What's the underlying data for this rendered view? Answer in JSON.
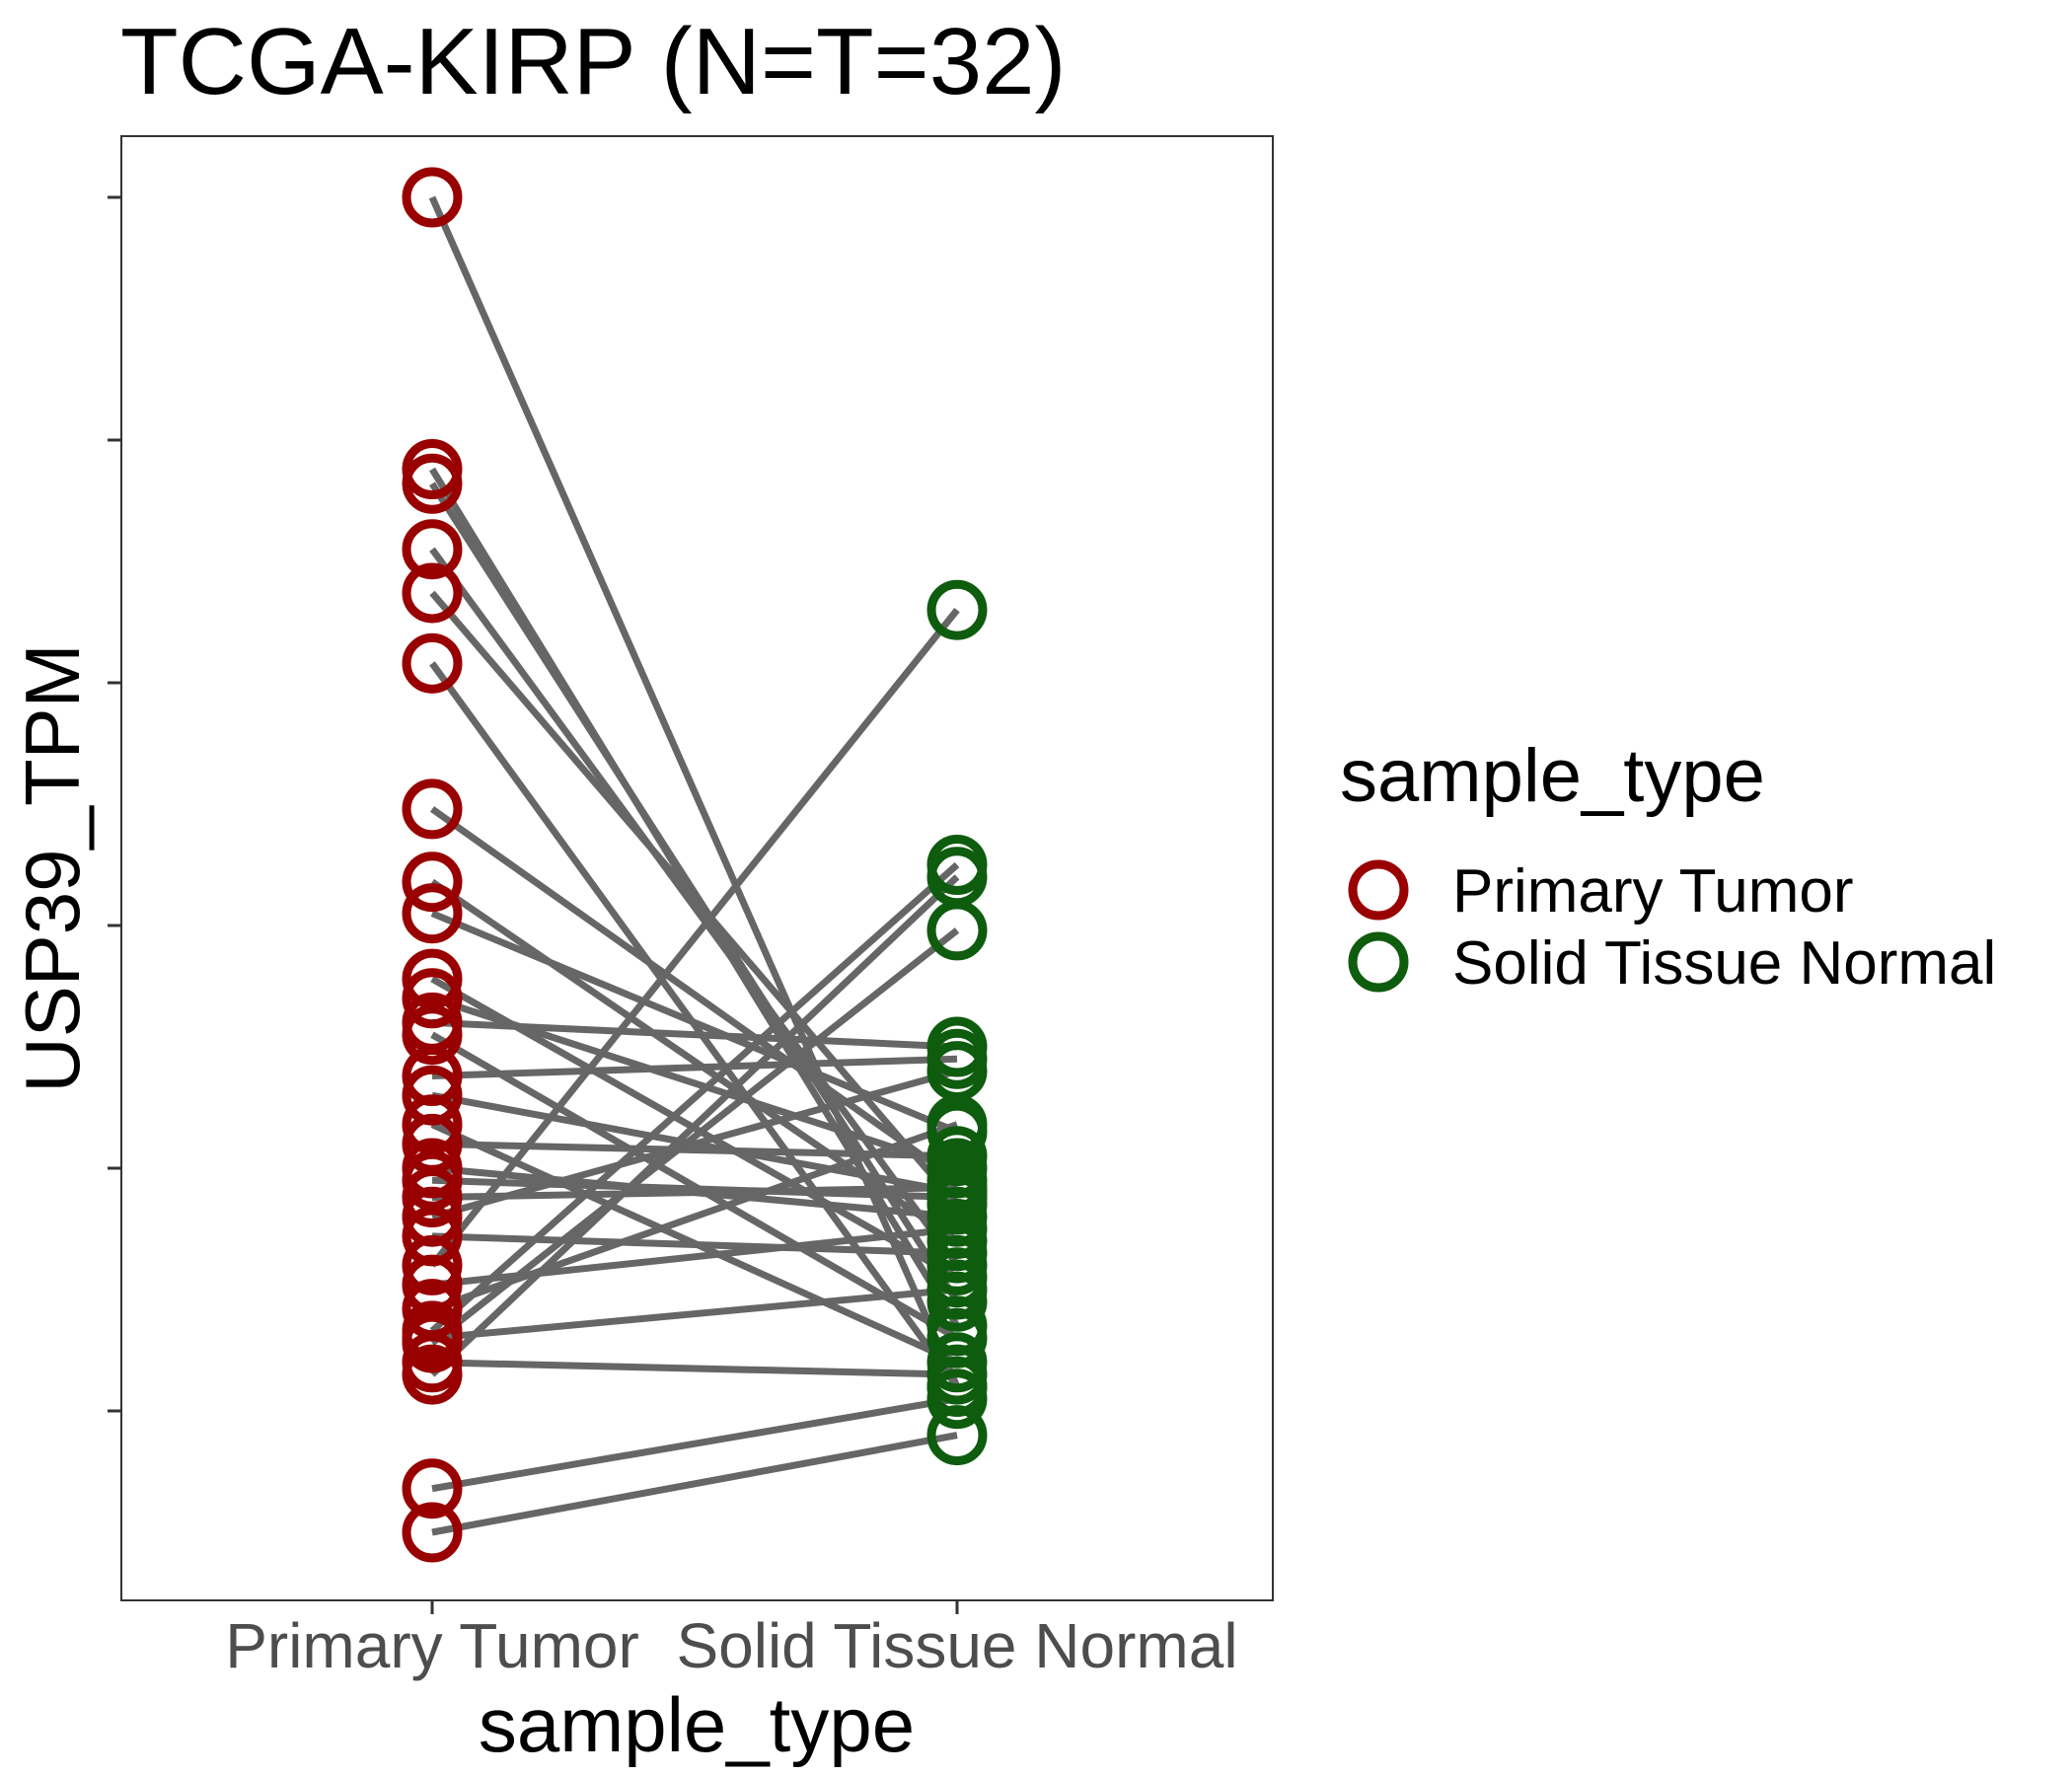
{
  "chart_data": {
    "type": "scatter",
    "title": "TCGA-KIRP  (N=T=32)",
    "xlabel": "sample_type",
    "ylabel": "USP39_TPM",
    "categories": [
      "Primary Tumor",
      "Solid Tissue Normal"
    ],
    "ylim": [
      -0.65,
      5.4
    ],
    "y_ticks": [
      0,
      1,
      2,
      3,
      4,
      5
    ],
    "y_tick_labels_shown": false,
    "grid": false,
    "legend": {
      "title": "sample_type",
      "position": "right",
      "entries": [
        "Primary Tumor",
        "Solid Tissue Normal"
      ]
    },
    "colors": {
      "Primary Tumor": "#990000",
      "Solid Tissue Normal": "#0e5c0e",
      "line": "#666666"
    },
    "pairs": [
      {
        "tumor": 5.0,
        "normal": 0.1
      },
      {
        "tumor": 3.88,
        "normal": 0.35
      },
      {
        "tumor": 3.82,
        "normal": 0.45
      },
      {
        "tumor": 3.55,
        "normal": 0.6
      },
      {
        "tumor": 3.37,
        "normal": 0.85
      },
      {
        "tumor": 3.08,
        "normal": 0.1
      },
      {
        "tumor": 2.48,
        "normal": 0.95
      },
      {
        "tumor": 2.18,
        "normal": 0.7
      },
      {
        "tumor": 2.05,
        "normal": 1.15
      },
      {
        "tumor": 1.78,
        "normal": 0.55
      },
      {
        "tumor": 1.7,
        "normal": 1.0
      },
      {
        "tumor": 1.6,
        "normal": 1.5
      },
      {
        "tumor": 1.55,
        "normal": 0.3
      },
      {
        "tumor": 1.38,
        "normal": 1.45
      },
      {
        "tumor": 1.3,
        "normal": 0.9
      },
      {
        "tumor": 1.18,
        "normal": 0.2
      },
      {
        "tumor": 1.1,
        "normal": 1.05
      },
      {
        "tumor": 1.0,
        "normal": 0.8
      },
      {
        "tumor": 0.95,
        "normal": 0.88
      },
      {
        "tumor": 0.88,
        "normal": 0.92
      },
      {
        "tumor": 0.8,
        "normal": 1.4
      },
      {
        "tumor": 0.72,
        "normal": 0.65
      },
      {
        "tumor": 0.6,
        "normal": 3.3
      },
      {
        "tumor": 0.52,
        "normal": 0.75
      },
      {
        "tumor": 0.42,
        "normal": 1.18
      },
      {
        "tumor": 0.33,
        "normal": 2.25
      },
      {
        "tumor": 0.3,
        "normal": 0.5
      },
      {
        "tumor": 0.28,
        "normal": 1.98
      },
      {
        "tumor": 0.2,
        "normal": 0.15
      },
      {
        "tumor": 0.15,
        "normal": 2.2
      },
      {
        "tumor": -0.32,
        "normal": 0.05
      },
      {
        "tumor": -0.5,
        "normal": -0.1
      }
    ]
  }
}
